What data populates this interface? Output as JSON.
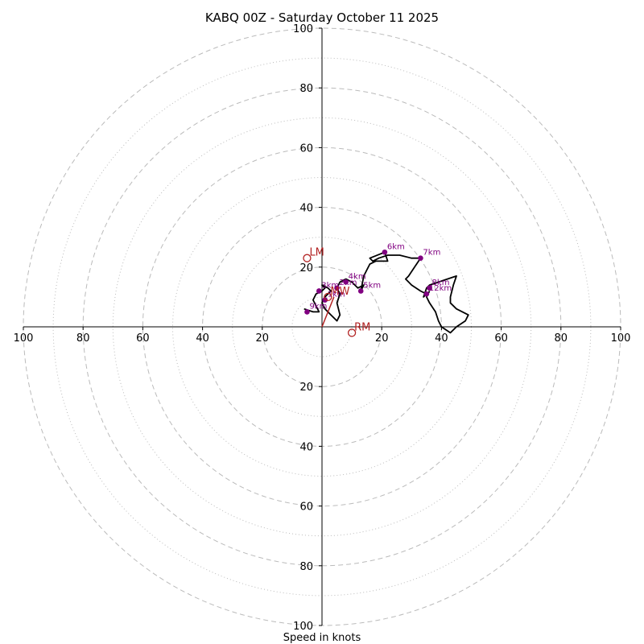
{
  "chart_data": {
    "type": "hodograph",
    "title": "KABQ 00Z - Saturday October 11 2025",
    "xlabel": "Speed in knots",
    "max_speed": 100,
    "major_rings": [
      20,
      40,
      60,
      80,
      100
    ],
    "minor_rings": [
      10,
      30,
      50,
      70,
      90
    ],
    "tick_labels": {
      "right": [
        "20",
        "40",
        "60",
        "80",
        "100"
      ],
      "left": [
        "20",
        "40",
        "60",
        "80",
        "100"
      ],
      "top": [
        "20",
        "40",
        "60",
        "80",
        "100"
      ],
      "bottom": [
        "20",
        "40",
        "60",
        "80",
        "100"
      ]
    },
    "profile": [
      [
        -6,
        6
      ],
      [
        -3,
        5
      ],
      [
        -1,
        5
      ],
      [
        -2,
        7
      ],
      [
        -3,
        9
      ],
      [
        -2,
        11
      ],
      [
        0,
        12
      ],
      [
        1,
        13
      ],
      [
        0,
        14
      ],
      [
        2,
        13
      ],
      [
        3,
        12
      ],
      [
        1,
        10
      ],
      [
        0,
        8
      ],
      [
        1,
        6
      ],
      [
        3,
        4
      ],
      [
        5,
        2
      ],
      [
        6,
        4
      ],
      [
        5,
        8
      ],
      [
        6,
        11
      ],
      [
        5,
        13
      ],
      [
        6,
        15
      ],
      [
        8,
        16
      ],
      [
        10,
        15
      ],
      [
        12,
        13
      ],
      [
        14,
        14
      ],
      [
        13,
        12
      ],
      [
        14,
        17
      ],
      [
        15,
        19
      ],
      [
        16,
        21
      ],
      [
        18,
        22
      ],
      [
        21,
        22
      ],
      [
        22,
        22
      ],
      [
        21,
        25
      ],
      [
        16,
        23
      ],
      [
        17,
        22
      ],
      [
        19,
        23
      ],
      [
        22,
        24
      ],
      [
        26,
        24
      ],
      [
        30,
        23
      ],
      [
        33,
        23
      ],
      [
        31,
        20
      ],
      [
        29,
        17
      ],
      [
        28,
        16
      ],
      [
        30,
        14
      ],
      [
        33,
        12
      ],
      [
        35,
        11
      ],
      [
        34,
        10
      ],
      [
        35,
        13
      ],
      [
        36,
        14
      ],
      [
        39,
        15
      ],
      [
        42,
        16
      ],
      [
        45,
        17
      ],
      [
        44,
        14
      ],
      [
        43,
        10
      ],
      [
        43,
        8
      ],
      [
        45,
        6
      ],
      [
        47,
        5
      ],
      [
        49,
        4
      ],
      [
        48,
        2
      ],
      [
        45,
        0
      ],
      [
        43,
        -2
      ],
      [
        40,
        0
      ],
      [
        39,
        2
      ],
      [
        38,
        5
      ],
      [
        36,
        8
      ],
      [
        35,
        10
      ],
      [
        36,
        12
      ]
    ],
    "height_markers": [
      {
        "label": "1km",
        "u": 1,
        "v": 9
      },
      {
        "label": "2km",
        "u": 5,
        "v": 13
      },
      {
        "label": "3km",
        "u": -1,
        "v": 12
      },
      {
        "label": "4km",
        "u": 8,
        "v": 15
      },
      {
        "label": "5km",
        "u": 13,
        "v": 12
      },
      {
        "label": "6km",
        "u": 21,
        "v": 25
      },
      {
        "label": "7km",
        "u": 33,
        "v": 23
      },
      {
        "label": "8km",
        "u": 36,
        "v": 13
      },
      {
        "label": "9km",
        "u": -5,
        "v": 5
      },
      {
        "label": "12km",
        "u": 35,
        "v": 11
      }
    ],
    "storm_motion": [
      {
        "label": "LM",
        "u": -5,
        "v": 23
      },
      {
        "label": "MW",
        "u": 2,
        "v": 10
      },
      {
        "label": "RM",
        "u": 10,
        "v": -2
      }
    ],
    "motion_vector": {
      "u": 4,
      "v": 10
    },
    "colors": {
      "profile": "#000000",
      "markers": "#800080",
      "storm": "#b22222",
      "grid": "#bbbbbb"
    }
  }
}
